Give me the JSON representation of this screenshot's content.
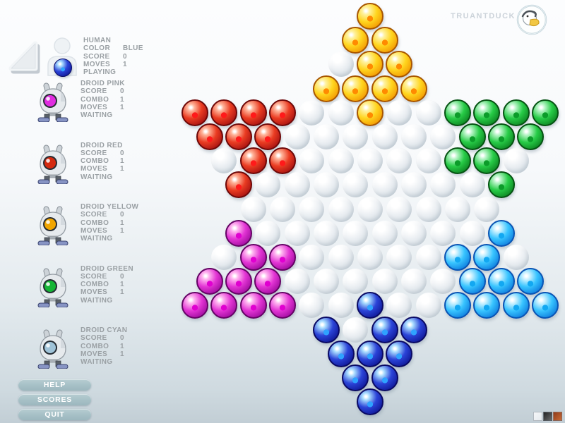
{
  "header": {
    "brand": "TRUANTDUCK"
  },
  "sidebar": {
    "human": {
      "name": "HUMAN",
      "color_label": "COLOR",
      "color_value": "BLUE",
      "score_label": "SCORE",
      "score_value": "0",
      "moves_label": "MOVES",
      "moves_value": "1",
      "status": "PLAYING",
      "marble": "B"
    },
    "stat_labels": {
      "score": "SCORE",
      "combo": "COMBO",
      "moves": "MOVES"
    },
    "droids": [
      {
        "id": "pink",
        "name": "DROID PINK",
        "score": "0",
        "combo": "1",
        "moves": "1",
        "status": "WAITING",
        "eye": "#e02ce0"
      },
      {
        "id": "red",
        "name": "DROID RED",
        "score": "0",
        "combo": "1",
        "moves": "1",
        "status": "WAITING",
        "eye": "#d42a10"
      },
      {
        "id": "yellow",
        "name": "DROID YELLOW",
        "score": "0",
        "combo": "1",
        "moves": "1",
        "status": "WAITING",
        "eye": "#f0a500"
      },
      {
        "id": "green",
        "name": "DROID GREEN",
        "score": "0",
        "combo": "1",
        "moves": "1",
        "status": "WAITING",
        "eye": "#15b535"
      },
      {
        "id": "cyan",
        "name": "DROID CYAN",
        "score": "0",
        "combo": "1",
        "moves": "1",
        "status": "WAITING",
        "eye": "#9fc3d8"
      }
    ]
  },
  "buttons": [
    {
      "id": "help",
      "label": "HELP"
    },
    {
      "id": "scores",
      "label": "SCORES"
    },
    {
      "id": "quit",
      "label": "QUIT"
    }
  ],
  "theme_swatches": [
    {
      "name": "light",
      "color": "#f4f6f8",
      "color2": "#e6eaee"
    },
    {
      "name": "dark",
      "color": "#242424",
      "color2": "#6a6a6a"
    },
    {
      "name": "orange",
      "color": "#8f3c1c",
      "color2": "#c96a35"
    }
  ],
  "board": {
    "legend": {
      "Y": "yellow",
      "R": "red",
      "G": "green",
      "M": "magenta",
      "C": "cyan",
      "B": "blue",
      ".": "empty hole"
    },
    "rows": [
      "Y",
      "YY",
      ".YY",
      "YYYY",
      "RRRR..Y..GGGG",
      "RRR......GGG",
      ".RR.....GG.",
      "R........G",
      ".........",
      "M........C",
      ".MM.....CC.",
      "MMM......CCC",
      "MMMM..B..CCCC",
      "B.BB",
      "BBB",
      "BB",
      "B"
    ],
    "palette": {
      "Y": {
        "name": "yellow",
        "hi": "#fff2a0",
        "body": "#ffd51e",
        "dark": "#f29500",
        "core": "#ff8a00",
        "edge": "#a85600"
      },
      "R": {
        "name": "red",
        "hi": "#ffb49a",
        "body": "#ea3c22",
        "dark": "#a31010",
        "core": "#ff1a1a",
        "edge": "#6e0808"
      },
      "G": {
        "name": "green",
        "hi": "#baf5c9",
        "body": "#27cc47",
        "dark": "#0b8020",
        "core": "#0c9c2a",
        "edge": "#055212"
      },
      "M": {
        "name": "magenta",
        "hi": "#ffb5f0",
        "body": "#e335d4",
        "dark": "#9c0a9c",
        "core": "#e000d0",
        "edge": "#640464"
      },
      "C": {
        "name": "cyan",
        "hi": "#cdf2ff",
        "body": "#38c4ff",
        "dark": "#0c7adc",
        "core": "#12a8f2",
        "edge": "#0a54b4"
      },
      "B": {
        "name": "blue",
        "hi": "#a8dcff",
        "body": "#2b44d8",
        "dark": "#0e1694",
        "core": "#2fa2ff",
        "edge": "#0a0a64"
      },
      "hole": {
        "body": "#eaeef2",
        "dark": "#d3dce2",
        "deep": "#c6d0d8"
      }
    }
  }
}
